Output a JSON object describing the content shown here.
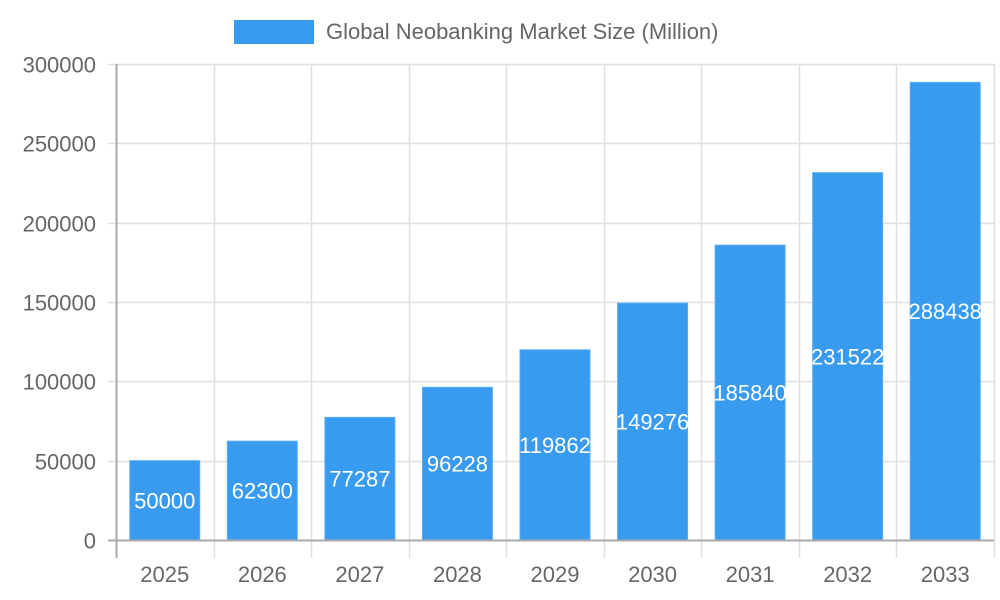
{
  "chart_data": {
    "type": "bar",
    "title": "",
    "legend": [
      {
        "label": "Global Neobanking Market Size (Million)",
        "color": "#399bf0"
      }
    ],
    "legend_position": "top",
    "categories": [
      "2025",
      "2026",
      "2027",
      "2028",
      "2029",
      "2030",
      "2031",
      "2032",
      "2033"
    ],
    "series": [
      {
        "name": "Global Neobanking Market Size (Million)",
        "values": [
          50000,
          62300,
          77287,
          96228,
          119862,
          149276,
          185840,
          231522,
          288438
        ],
        "color": "#399bf0"
      }
    ],
    "data_labels": [
      "50000",
      "62300",
      "77287",
      "96228",
      "119862",
      "149276",
      "185840",
      "231522",
      "288438"
    ],
    "xlabel": "",
    "ylabel": "",
    "ylim": [
      0,
      300000
    ],
    "yticks": [
      0,
      50000,
      100000,
      150000,
      200000,
      250000,
      300000
    ],
    "ytick_labels": [
      "0",
      "50000",
      "100000",
      "150000",
      "200000",
      "250000",
      "300000"
    ],
    "grid": true
  },
  "legend": {
    "label": "Global Neobanking Market Size (Million)",
    "color": "#399bf0"
  }
}
